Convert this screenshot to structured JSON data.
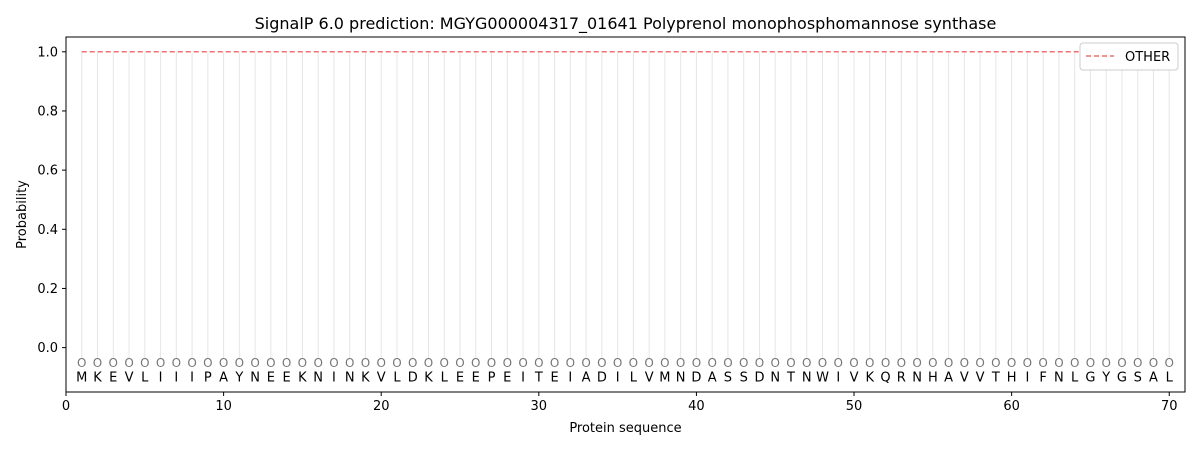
{
  "chart_data": {
    "type": "line",
    "title": "SignalP 6.0 prediction: MGYG000004317_01641 Polyprenol monophosphomannose synthase",
    "xlabel": "Protein sequence",
    "ylabel": "Probability",
    "xlim": [
      0,
      71
    ],
    "ylim": [
      -0.15,
      1.05
    ],
    "xticks": [
      0,
      10,
      20,
      30,
      40,
      50,
      60,
      70
    ],
    "yticks": [
      0.0,
      0.2,
      0.4,
      0.6,
      0.8,
      1.0
    ],
    "ytick_labels": [
      "0.0",
      "0.2",
      "0.4",
      "0.6",
      "0.8",
      "1.0"
    ],
    "legend_position": "top-right",
    "sequence": [
      "M",
      "K",
      "E",
      "V",
      "L",
      "I",
      "I",
      "I",
      "P",
      "A",
      "Y",
      "N",
      "E",
      "E",
      "K",
      "N",
      "I",
      "N",
      "K",
      "V",
      "L",
      "D",
      "K",
      "L",
      "E",
      "E",
      "P",
      "E",
      "I",
      "T",
      "E",
      "I",
      "A",
      "D",
      "I",
      "L",
      "V",
      "M",
      "N",
      "D",
      "A",
      "S",
      "S",
      "D",
      "N",
      "T",
      "N",
      "W",
      "I",
      "V",
      "K",
      "Q",
      "R",
      "N",
      "H",
      "A",
      "V",
      "V",
      "T",
      "H",
      "I",
      "F",
      "N",
      "L",
      "G",
      "Y",
      "G",
      "S",
      "A",
      "L"
    ],
    "state_label": "O",
    "series": [
      {
        "name": "OTHER",
        "color": "#e87474",
        "style": "dashed",
        "x": [
          1,
          70
        ],
        "y": [
          1.0,
          1.0
        ]
      }
    ]
  }
}
